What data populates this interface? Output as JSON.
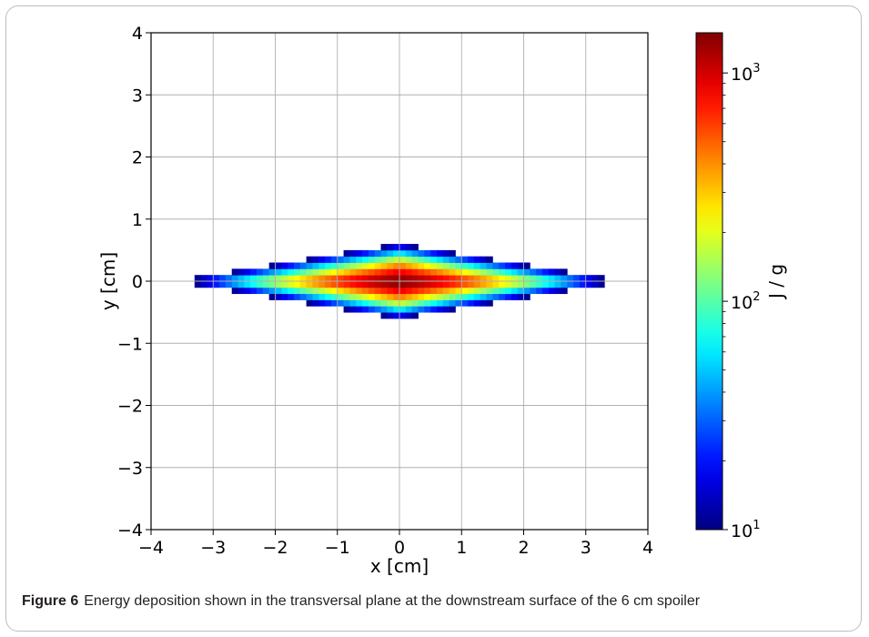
{
  "chart_data": {
    "type": "heatmap",
    "title": "",
    "xlabel": "x [cm]",
    "ylabel": "y [cm]",
    "xlim": [
      -4,
      4
    ],
    "ylim": [
      -4,
      4
    ],
    "xticks": [
      "−4",
      "−3",
      "−2",
      "−1",
      "0",
      "1",
      "2",
      "3",
      "4"
    ],
    "yticks": [
      "−4",
      "−3",
      "−2",
      "−1",
      "0",
      "1",
      "2",
      "3",
      "4"
    ],
    "grid": true,
    "colormap": "jet",
    "colorbar": {
      "label": "J / g",
      "scale": "log",
      "range": [
        10,
        1500
      ],
      "ticks": [
        {
          "value": 10,
          "label": "10",
          "exp": "1"
        },
        {
          "value": 100,
          "label": "10",
          "exp": "2"
        },
        {
          "value": 1000,
          "label": "10",
          "exp": "3"
        }
      ]
    },
    "distribution": {
      "shape": "elliptical spot centered at origin",
      "peak_value": 1500,
      "peak_x": 0,
      "peak_y": 0,
      "x_extent": [
        -3.6,
        3.6
      ],
      "y_extent": [
        -0.6,
        0.6
      ],
      "bin_size_x": 0.1,
      "bin_size_y": 0.1
    }
  },
  "caption": {
    "label": "Figure 6",
    "text": "Energy deposition shown in the transversal plane at the downstream surface of the 6 cm spoiler"
  }
}
